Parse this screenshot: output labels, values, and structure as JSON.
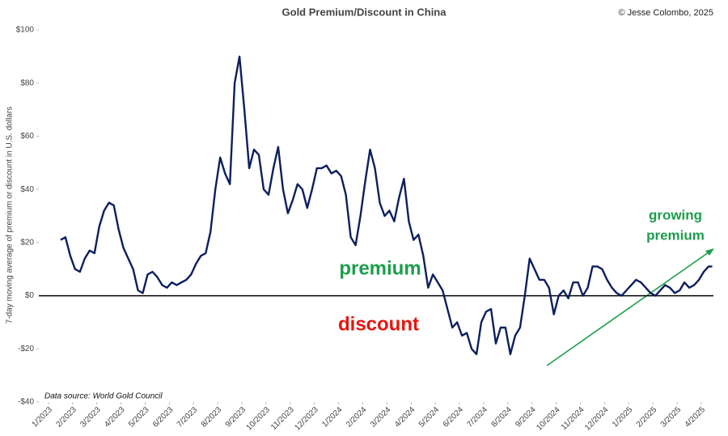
{
  "chart_data": {
    "type": "line",
    "title": "Gold Premium/Discount in China",
    "credit": "© Jesse Colombo, 2025",
    "y_label": "7-day moving average of premium or discount in U.S. dollars",
    "source": "Data source: World Gold Council",
    "annotations": {
      "premium": "premium",
      "discount": "discount",
      "growing": [
        "growing",
        "premium"
      ]
    },
    "annotation_colors": {
      "premium": "#1a9e4a",
      "discount": "#e8150f",
      "growing": "#1a9e4a"
    },
    "xlim": [
      -0.4,
      27.5
    ],
    "ylim": [
      -40,
      100
    ],
    "yticks": [
      {
        "value": -40,
        "label": "-$40"
      },
      {
        "value": -20,
        "label": "-$20"
      },
      {
        "value": 0,
        "label": "$0"
      },
      {
        "value": 20,
        "label": "$20"
      },
      {
        "value": 40,
        "label": "$40"
      },
      {
        "value": 60,
        "label": "$60"
      },
      {
        "value": 80,
        "label": "$80"
      },
      {
        "value": 100,
        "label": "$100"
      }
    ],
    "xticks": [
      {
        "value": 0,
        "label": "1/2023"
      },
      {
        "value": 1,
        "label": "2/2023"
      },
      {
        "value": 2,
        "label": "3/2023"
      },
      {
        "value": 3,
        "label": "4/2023"
      },
      {
        "value": 4,
        "label": "5/2023"
      },
      {
        "value": 5,
        "label": "6/2023"
      },
      {
        "value": 6,
        "label": "7/2023"
      },
      {
        "value": 7,
        "label": "8/2023"
      },
      {
        "value": 8,
        "label": "9/2023"
      },
      {
        "value": 9,
        "label": "10/2023"
      },
      {
        "value": 10,
        "label": "11/2023"
      },
      {
        "value": 11,
        "label": "12/2023"
      },
      {
        "value": 12,
        "label": "1/2024"
      },
      {
        "value": 13,
        "label": "2/2024"
      },
      {
        "value": 14,
        "label": "3/2024"
      },
      {
        "value": 15,
        "label": "4/2024"
      },
      {
        "value": 16,
        "label": "5/2024"
      },
      {
        "value": 17,
        "label": "6/2024"
      },
      {
        "value": 18,
        "label": "7/2024"
      },
      {
        "value": 19,
        "label": "8/2024"
      },
      {
        "value": 20,
        "label": "9/2024"
      },
      {
        "value": 21,
        "label": "10/2024"
      },
      {
        "value": 22,
        "label": "11/2024"
      },
      {
        "value": 23,
        "label": "12/2024"
      },
      {
        "value": 24,
        "label": "1/2025"
      },
      {
        "value": 25,
        "label": "2/2025"
      },
      {
        "value": 26,
        "label": "3/2025"
      },
      {
        "value": 27,
        "label": "4/2025"
      }
    ],
    "x": [
      0.5,
      0.7,
      0.9,
      1.1,
      1.3,
      1.5,
      1.7,
      1.9,
      2.1,
      2.3,
      2.5,
      2.7,
      2.9,
      3.1,
      3.3,
      3.5,
      3.7,
      3.9,
      4.1,
      4.3,
      4.5,
      4.7,
      4.9,
      5.1,
      5.3,
      5.5,
      5.7,
      5.9,
      6.1,
      6.3,
      6.5,
      6.7,
      6.9,
      7.1,
      7.3,
      7.5,
      7.7,
      7.9,
      8.1,
      8.3,
      8.5,
      8.7,
      8.9,
      9.1,
      9.3,
      9.5,
      9.7,
      9.9,
      10.1,
      10.3,
      10.5,
      10.7,
      10.9,
      11.1,
      11.3,
      11.5,
      11.7,
      11.9,
      12.1,
      12.3,
      12.5,
      12.7,
      12.9,
      13.1,
      13.3,
      13.5,
      13.7,
      13.9,
      14.1,
      14.3,
      14.5,
      14.7,
      14.9,
      15.1,
      15.3,
      15.5,
      15.7,
      15.9,
      16.1,
      16.3,
      16.5,
      16.7,
      16.9,
      17.1,
      17.3,
      17.5,
      17.7,
      17.9,
      18.1,
      18.3,
      18.5,
      18.7,
      18.9,
      19.1,
      19.3,
      19.5,
      19.7,
      19.9,
      20.1,
      20.3,
      20.5,
      20.7,
      20.9,
      21.1,
      21.3,
      21.5,
      21.7,
      21.9,
      22.1,
      22.3,
      22.5,
      22.7,
      22.9,
      23.1,
      23.3,
      23.5,
      23.7,
      23.9,
      24.1,
      24.3,
      24.5,
      24.7,
      24.9,
      25.1,
      25.3,
      25.5,
      25.7,
      25.9,
      26.1,
      26.3,
      26.5,
      26.7,
      26.9,
      27.1,
      27.3,
      27.45
    ],
    "series": [
      {
        "name": "Gold premium/discount",
        "color": "#0c1f5e",
        "values": [
          21,
          22,
          15,
          10,
          9,
          14,
          17,
          16,
          26,
          32,
          35,
          34,
          25,
          18,
          14,
          10,
          2,
          1,
          8,
          9,
          7,
          4,
          3,
          5,
          4,
          5,
          6,
          8,
          12,
          15,
          16,
          24,
          40,
          52,
          46,
          42,
          80,
          90,
          70,
          48,
          55,
          53,
          40,
          38,
          48,
          56,
          40,
          31,
          36,
          42,
          40,
          33,
          40,
          48,
          48,
          49,
          46,
          47,
          45,
          38,
          22,
          19,
          30,
          43,
          55,
          48,
          35,
          30,
          32,
          28,
          37,
          44,
          28,
          21,
          23,
          15,
          3,
          8,
          5,
          2,
          -5,
          -12,
          -10,
          -15,
          -14,
          -20,
          -22,
          -10,
          -6,
          -5,
          -18,
          -12,
          -12,
          -22,
          -15,
          -12,
          0,
          14,
          10,
          6,
          6,
          3,
          -7,
          0,
          2,
          -1,
          5,
          5,
          0,
          3,
          11,
          11,
          10,
          6,
          3,
          1,
          0,
          2,
          4,
          6,
          5,
          3,
          1,
          0,
          2,
          4,
          3,
          1,
          2,
          5,
          3,
          4,
          6,
          9,
          11,
          11
        ]
      }
    ]
  }
}
